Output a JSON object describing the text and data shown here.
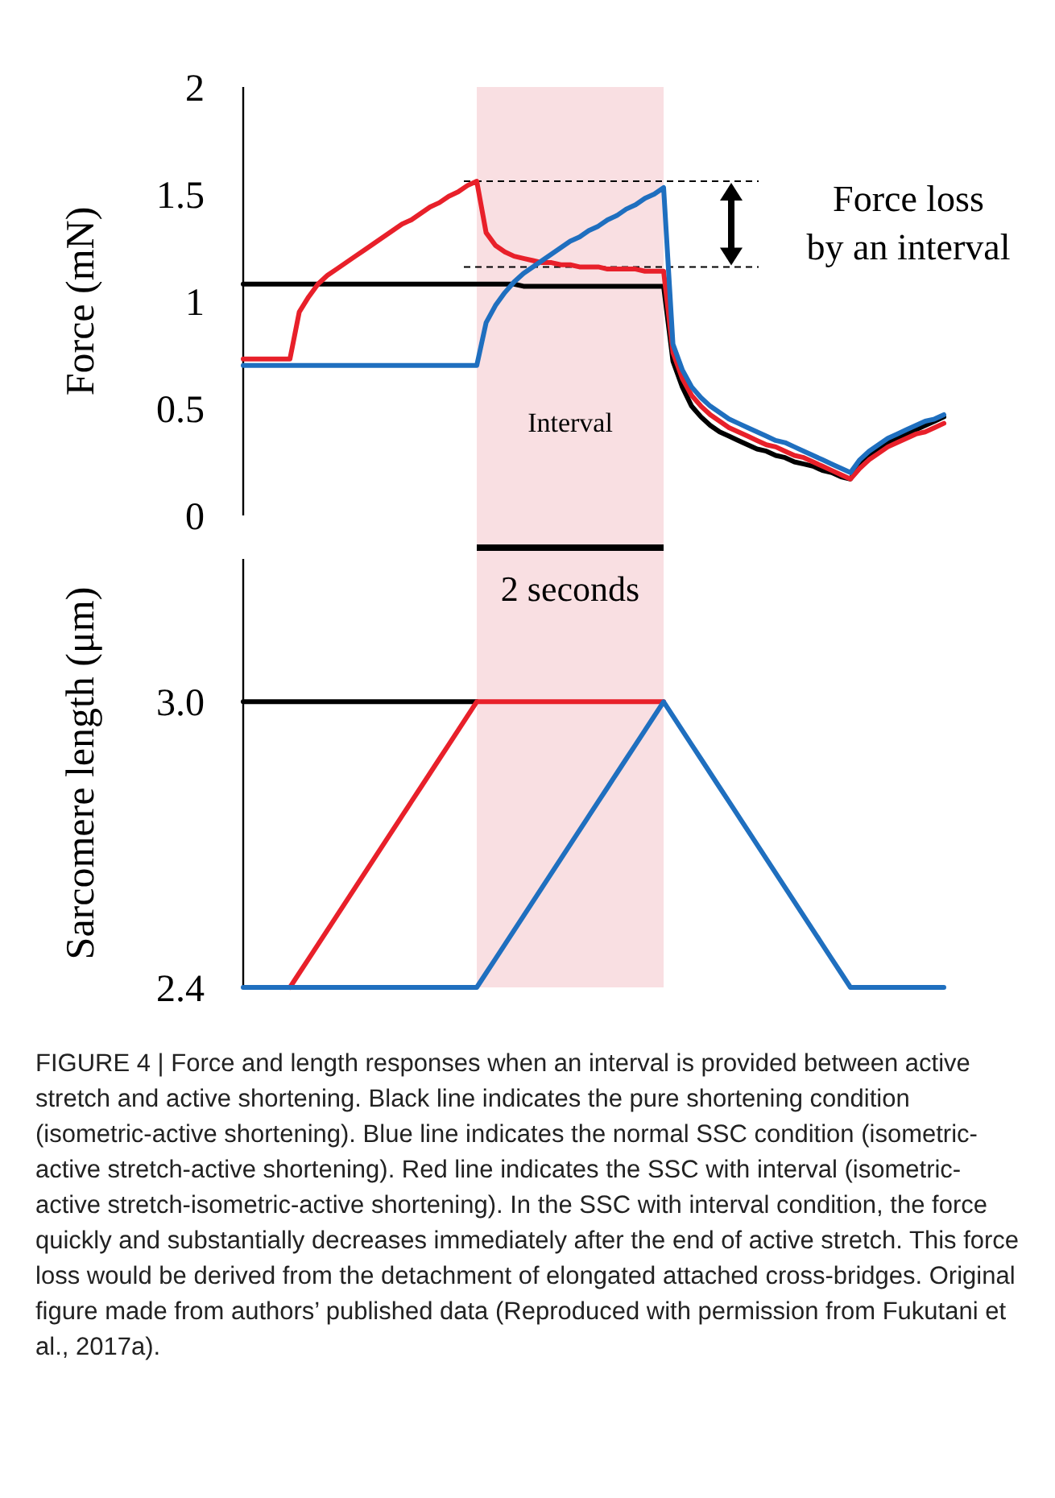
{
  "chart_data": [
    {
      "type": "line",
      "ylabel": "Force (mN)",
      "ylim": [
        0,
        2
      ],
      "yticks": [
        0,
        0.5,
        1,
        1.5,
        2
      ],
      "tick_labels": "y",
      "grid": false,
      "marker": "none",
      "line_style": "solid",
      "categories": [
        null,
        null,
        null,
        null,
        null,
        null,
        null,
        null,
        null,
        null,
        null,
        null,
        null,
        null,
        null,
        null,
        null,
        null,
        null,
        null,
        null,
        null,
        null,
        null,
        null,
        null,
        null,
        null,
        null,
        null,
        null,
        null,
        null,
        null,
        null,
        null,
        null,
        null,
        null,
        null,
        null,
        null,
        null,
        null,
        null,
        null,
        null,
        null,
        null,
        null,
        null,
        null,
        null,
        null,
        null,
        null,
        null,
        null,
        null,
        null,
        null,
        null,
        null,
        null,
        null,
        null,
        null,
        null,
        null,
        null,
        null,
        null,
        null,
        null,
        null,
        null
      ],
      "series": [
        {
          "color": "#000000",
          "values": [
            1.08,
            1.08,
            1.08,
            1.08,
            1.08,
            1.08,
            1.08,
            1.08,
            1.08,
            1.08,
            1.08,
            1.08,
            1.08,
            1.08,
            1.08,
            1.08,
            1.08,
            1.08,
            1.08,
            1.08,
            1.08,
            1.08,
            1.08,
            1.08,
            1.08,
            1.08,
            1.08,
            1.08,
            1.08,
            1.08,
            1.07,
            1.07,
            1.07,
            1.07,
            1.07,
            1.07,
            1.07,
            1.07,
            1.07,
            1.07,
            1.07,
            1.07,
            1.07,
            1.07,
            1.07,
            1.07,
            0.72,
            0.6,
            0.51,
            0.46,
            0.42,
            0.39,
            0.37,
            0.35,
            0.33,
            0.31,
            0.3,
            0.28,
            0.27,
            0.25,
            0.24,
            0.23,
            0.21,
            0.2,
            0.18,
            0.17,
            0.24,
            0.28,
            0.31,
            0.34,
            0.36,
            0.38,
            0.4,
            0.42,
            0.44,
            0.46
          ]
        },
        {
          "color": "#e8202a",
          "values": [
            0.73,
            0.73,
            0.73,
            0.73,
            0.73,
            0.73,
            0.95,
            1.02,
            1.08,
            1.12,
            1.15,
            1.18,
            1.21,
            1.24,
            1.27,
            1.3,
            1.33,
            1.36,
            1.38,
            1.41,
            1.44,
            1.46,
            1.49,
            1.51,
            1.54,
            1.56,
            1.32,
            1.26,
            1.23,
            1.21,
            1.2,
            1.19,
            1.18,
            1.18,
            1.17,
            1.17,
            1.16,
            1.16,
            1.16,
            1.15,
            1.15,
            1.15,
            1.15,
            1.14,
            1.14,
            1.14,
            0.76,
            0.64,
            0.56,
            0.51,
            0.47,
            0.44,
            0.41,
            0.39,
            0.37,
            0.35,
            0.33,
            0.32,
            0.3,
            0.28,
            0.27,
            0.25,
            0.23,
            0.21,
            0.19,
            0.17,
            0.22,
            0.26,
            0.29,
            0.32,
            0.34,
            0.36,
            0.38,
            0.39,
            0.41,
            0.43
          ]
        },
        {
          "color": "#1f6fbf",
          "values": [
            0.7,
            0.7,
            0.7,
            0.7,
            0.7,
            0.7,
            0.7,
            0.7,
            0.7,
            0.7,
            0.7,
            0.7,
            0.7,
            0.7,
            0.7,
            0.7,
            0.7,
            0.7,
            0.7,
            0.7,
            0.7,
            0.7,
            0.7,
            0.7,
            0.7,
            0.7,
            0.9,
            0.98,
            1.04,
            1.09,
            1.13,
            1.16,
            1.19,
            1.22,
            1.25,
            1.28,
            1.3,
            1.33,
            1.35,
            1.38,
            1.4,
            1.43,
            1.45,
            1.48,
            1.5,
            1.53,
            0.8,
            0.68,
            0.6,
            0.55,
            0.51,
            0.48,
            0.45,
            0.43,
            0.41,
            0.39,
            0.37,
            0.35,
            0.34,
            0.32,
            0.3,
            0.28,
            0.26,
            0.24,
            0.22,
            0.2,
            0.26,
            0.3,
            0.33,
            0.36,
            0.38,
            0.4,
            0.42,
            0.44,
            0.45,
            0.47
          ]
        }
      ],
      "ref_lines": [
        {
          "axis": "y",
          "value": 1.56,
          "line_style": "dashed"
        },
        {
          "axis": "y",
          "value": 1.16,
          "line_style": "dashed"
        }
      ],
      "annotations": [
        "Force loss\nby an interval",
        "Interval",
        "2 seconds"
      ]
    },
    {
      "type": "line",
      "ylabel": "Sarcomere length (μm)",
      "ylim": [
        2.4,
        3.3
      ],
      "yticks": [
        2.4,
        {
          "value": 3,
          "label": "3.0"
        }
      ],
      "tick_labels": "y",
      "grid": false,
      "marker": "none",
      "line_style": "solid",
      "categories": [
        null,
        null,
        null,
        null,
        null,
        null,
        null,
        null,
        null,
        null,
        null,
        null,
        null,
        null,
        null,
        null,
        null,
        null,
        null,
        null,
        null,
        null,
        null,
        null,
        null,
        null,
        null,
        null,
        null,
        null,
        null,
        null,
        null,
        null,
        null,
        null,
        null,
        null,
        null,
        null,
        null,
        null,
        null,
        null,
        null,
        null,
        null,
        null,
        null,
        null,
        null,
        null,
        null,
        null,
        null,
        null,
        null,
        null,
        null,
        null,
        null,
        null,
        null,
        null,
        null,
        null,
        null,
        null,
        null,
        null,
        null,
        null,
        null,
        null,
        null,
        null
      ],
      "series": [
        {
          "color": "#000000",
          "values": [
            3.0,
            3.0,
            3.0,
            3.0,
            3.0,
            3.0,
            3.0,
            3.0,
            3.0,
            3.0,
            3.0,
            3.0,
            3.0,
            3.0,
            3.0,
            3.0,
            3.0,
            3.0,
            3.0,
            3.0,
            3.0,
            3.0,
            3.0,
            3.0,
            3.0,
            3.0,
            null,
            null,
            null,
            null,
            null,
            null,
            null,
            null,
            null,
            null,
            null,
            null,
            null,
            null,
            null,
            null,
            null,
            null,
            null,
            null,
            null,
            null,
            null,
            null,
            null,
            null,
            null,
            null,
            null,
            null,
            null,
            null,
            null,
            null,
            null,
            null,
            null,
            null,
            null,
            null,
            null,
            null,
            null,
            null,
            null,
            null,
            null,
            null,
            null,
            null
          ]
        },
        {
          "color": "#e8202a",
          "values": [
            null,
            null,
            null,
            null,
            null,
            2.4,
            2.43,
            2.46,
            2.49,
            2.52,
            2.55,
            2.58,
            2.61,
            2.64,
            2.67,
            2.7,
            2.73,
            2.76,
            2.79,
            2.82,
            2.85,
            2.88,
            2.91,
            2.94,
            2.97,
            3.0,
            3.0,
            3.0,
            3.0,
            3.0,
            3.0,
            3.0,
            3.0,
            3.0,
            3.0,
            3.0,
            3.0,
            3.0,
            3.0,
            3.0,
            3.0,
            3.0,
            3.0,
            3.0,
            3.0,
            3.0,
            null,
            null,
            null,
            null,
            null,
            null,
            null,
            null,
            null,
            null,
            null,
            null,
            null,
            null,
            null,
            null,
            null,
            null,
            null,
            null,
            null,
            null,
            null,
            null,
            null,
            null,
            null,
            null,
            null,
            null
          ]
        },
        {
          "color": "#1f6fbf",
          "values": [
            2.4,
            2.4,
            2.4,
            2.4,
            2.4,
            2.4,
            2.4,
            2.4,
            2.4,
            2.4,
            2.4,
            2.4,
            2.4,
            2.4,
            2.4,
            2.4,
            2.4,
            2.4,
            2.4,
            2.4,
            2.4,
            2.4,
            2.4,
            2.4,
            2.4,
            2.4,
            2.43,
            2.46,
            2.49,
            2.52,
            2.55,
            2.58,
            2.61,
            2.64,
            2.67,
            2.7,
            2.73,
            2.76,
            2.79,
            2.82,
            2.85,
            2.88,
            2.91,
            2.94,
            2.97,
            3.0,
            2.97,
            2.94,
            2.91,
            2.88,
            2.85,
            2.82,
            2.79,
            2.76,
            2.73,
            2.7,
            2.67,
            2.64,
            2.61,
            2.58,
            2.55,
            2.52,
            2.49,
            2.46,
            2.43,
            2.4,
            2.4,
            2.4,
            2.4,
            2.4,
            2.4,
            2.4,
            2.4,
            2.4,
            2.4,
            2.4
          ]
        }
      ],
      "annotations": [
        "FIGURE 4 | Force and length responses when an interval is provided between active stretch and active shortening. Black line indicates the pure shortening condition (isometric-active shortening). Blue line indicates the normal SSC condition (isometric-active stretch-active shortening). Red line indicates the SSC with interval (isometric-active stretch-isometric-active shortening). In the SSC with interval condition, the force quickly and substantially decreases immediately after the end of active stretch. This force loss would be derived from the detachment of elongated attached cross-bridges. Original figure made from authors’ published data (Reproduced with permission from Fukutani et al., 2017a)."
      ]
    }
  ]
}
